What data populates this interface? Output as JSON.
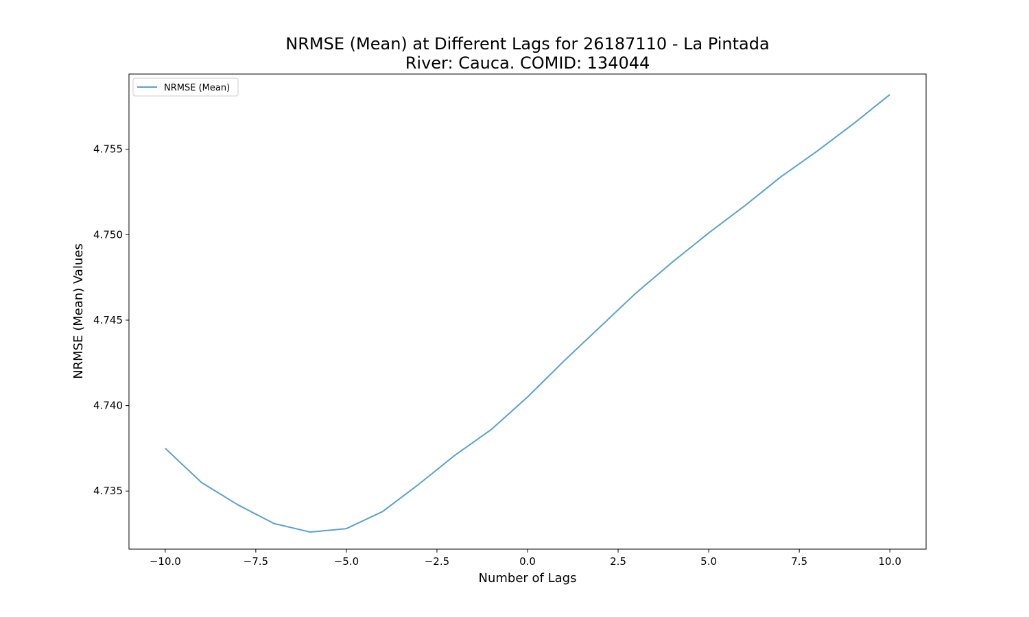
{
  "chart_data": {
    "type": "line",
    "title_line1": "NRMSE (Mean) at Different Lags for 26187110 - La Pintada",
    "title_line2": "River: Cauca. COMID: 134044",
    "xlabel": "Number of Lags",
    "ylabel": "NRMSE (Mean) Values",
    "xlim": [
      -11,
      11
    ],
    "ylim": [
      4.7316,
      4.7594
    ],
    "x_ticks": [
      -10.0,
      -7.5,
      -5.0,
      -2.5,
      0.0,
      2.5,
      5.0,
      7.5,
      10.0
    ],
    "x_tick_labels": [
      "−10.0",
      "−7.5",
      "−5.0",
      "−2.5",
      "0.0",
      "2.5",
      "5.0",
      "7.5",
      "10.0"
    ],
    "y_ticks": [
      4.735,
      4.74,
      4.745,
      4.75,
      4.755
    ],
    "y_tick_labels": [
      "4.735",
      "4.740",
      "4.745",
      "4.750",
      "4.755"
    ],
    "grid": false,
    "legend_position": "upper-left",
    "series": [
      {
        "name": "NRMSE (Mean)",
        "color": "#5b9fcc",
        "x": [
          -10,
          -9,
          -8,
          -7,
          -6,
          -5,
          -4,
          -3,
          -2,
          -1,
          0,
          1,
          2,
          3,
          4,
          5,
          6,
          7,
          8,
          9,
          10
        ],
        "y": [
          4.7375,
          4.7355,
          4.7342,
          4.7331,
          4.7326,
          4.7328,
          4.7338,
          4.7354,
          4.7371,
          4.7386,
          4.7405,
          4.7426,
          4.7446,
          4.7466,
          4.7484,
          4.7501,
          4.7517,
          4.7534,
          4.7549,
          4.7565,
          4.7582
        ]
      }
    ]
  }
}
